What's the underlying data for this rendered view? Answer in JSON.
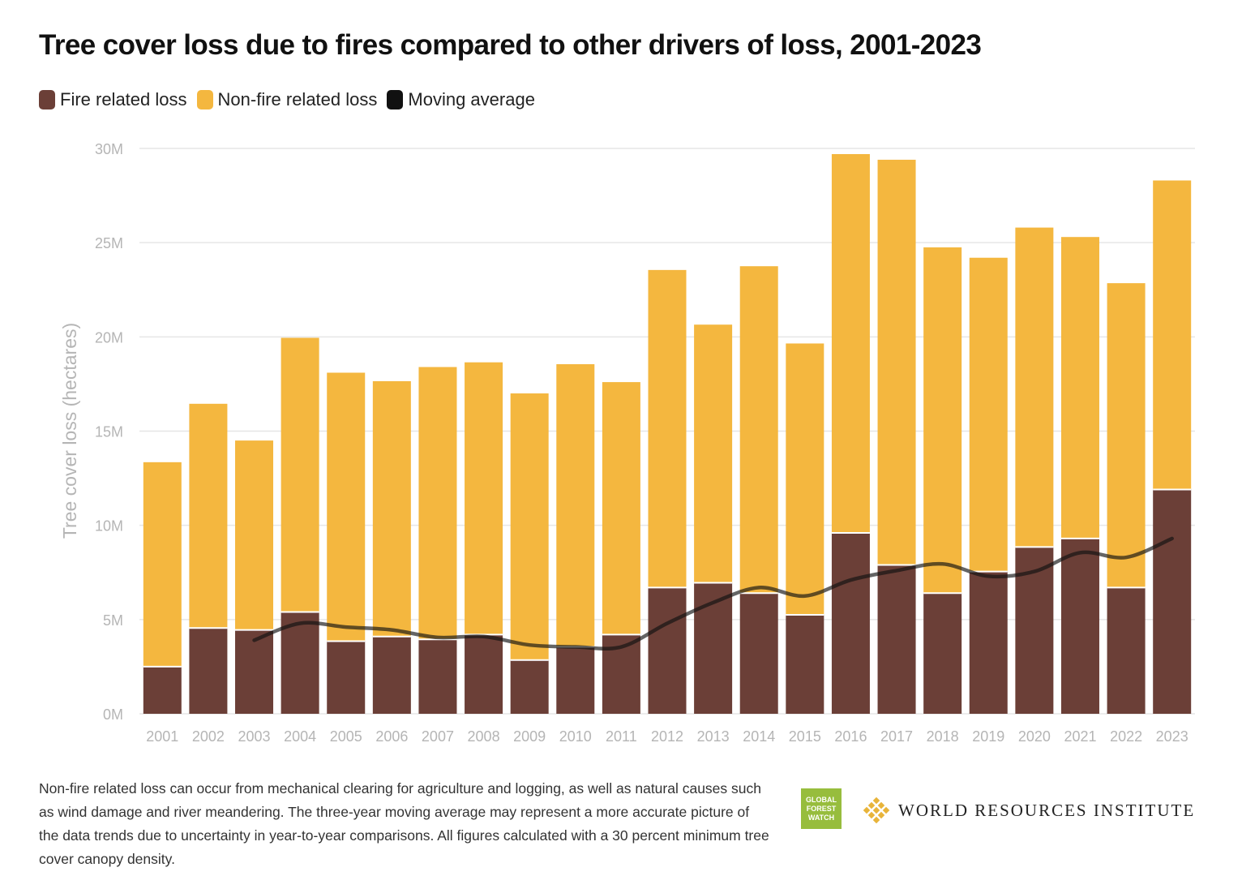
{
  "title": "Tree cover loss due to fires compared to other drivers of loss, 2001-2023",
  "legend": [
    {
      "label": "Fire related loss",
      "color": "#6b3f37"
    },
    {
      "label": "Non-fire related loss",
      "color": "#f4b73f"
    },
    {
      "label": "Moving average",
      "color": "#111111"
    }
  ],
  "footnote": "Non-fire related loss can occur from mechanical clearing for agriculture and logging, as well as natural causes such as wind damage and river meandering. The three-year moving average may represent a more accurate picture of the data trends due to uncertainty in year-to-year comparisons. All figures calculated with a 30 percent minimum tree cover canopy density.",
  "logos": {
    "gfw": "GLOBAL FOREST WATCH",
    "wri": "WORLD RESOURCES INSTITUTE"
  },
  "chart_data": {
    "type": "bar",
    "stacked": true,
    "title": "Tree cover loss due to fires compared to other drivers of loss, 2001-2023",
    "ylabel": "Tree cover loss (hectares)",
    "xlabel": "",
    "ylim": [
      0,
      30000000
    ],
    "yticks": [
      0,
      5000000,
      10000000,
      15000000,
      20000000,
      25000000,
      30000000
    ],
    "ytick_labels": [
      "0M",
      "5M",
      "10M",
      "15M",
      "20M",
      "25M",
      "30M"
    ],
    "grid": true,
    "legend_position": "top-left",
    "categories": [
      "2001",
      "2002",
      "2003",
      "2004",
      "2005",
      "2006",
      "2007",
      "2008",
      "2009",
      "2010",
      "2011",
      "2012",
      "2013",
      "2014",
      "2015",
      "2016",
      "2017",
      "2018",
      "2019",
      "2020",
      "2021",
      "2022",
      "2023"
    ],
    "series": [
      {
        "name": "Fire related loss",
        "color": "#6b3f37",
        "values": [
          2.5,
          4.55,
          4.45,
          5.4,
          3.85,
          4.1,
          3.95,
          4.2,
          2.85,
          3.55,
          4.2,
          6.7,
          6.95,
          6.4,
          5.25,
          9.6,
          7.9,
          6.4,
          7.55,
          8.85,
          9.3,
          6.7,
          11.9
        ]
      },
      {
        "name": "Non-fire related loss",
        "color": "#f4b73f",
        "values": [
          10.85,
          11.9,
          10.05,
          14.55,
          14.25,
          13.55,
          14.45,
          14.45,
          14.15,
          15.0,
          13.4,
          16.85,
          13.7,
          17.35,
          14.4,
          20.1,
          21.5,
          18.35,
          16.65,
          16.95,
          16.0,
          16.15,
          16.4
        ]
      },
      {
        "name": "Moving average",
        "color": "#111111",
        "type": "line",
        "x": [
          "2003",
          "2004",
          "2005",
          "2006",
          "2007",
          "2008",
          "2009",
          "2010",
          "2011",
          "2012",
          "2013",
          "2014",
          "2015",
          "2016",
          "2017",
          "2018",
          "2019",
          "2020",
          "2021",
          "2022",
          "2023"
        ],
        "values": [
          3.9,
          4.8,
          4.6,
          4.45,
          4.05,
          4.1,
          3.65,
          3.55,
          3.55,
          4.8,
          5.9,
          6.7,
          6.25,
          7.1,
          7.6,
          7.95,
          7.3,
          7.55,
          8.55,
          8.3,
          9.3
        ]
      }
    ],
    "unit_note": "values in millions of hectares"
  }
}
